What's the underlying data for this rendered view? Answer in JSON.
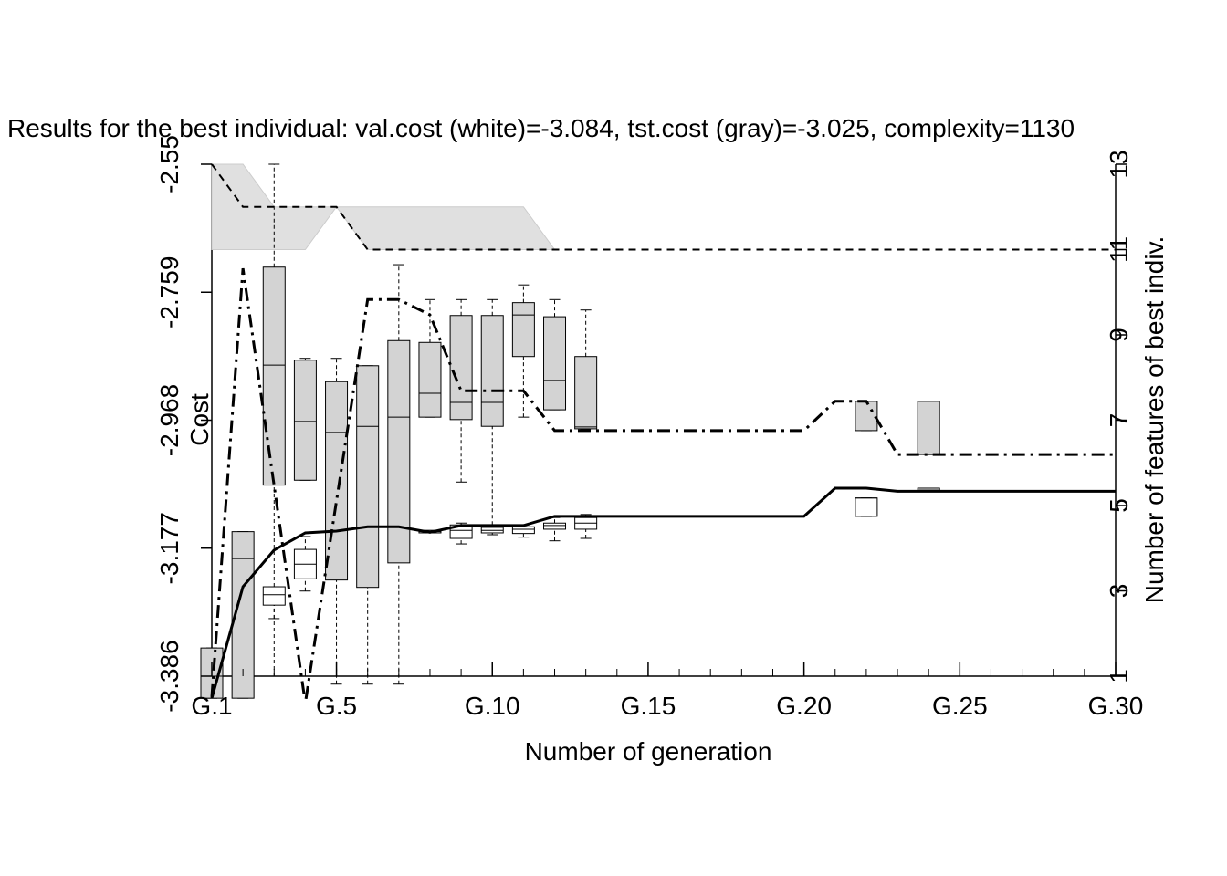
{
  "chart_data": {
    "type": "boxline",
    "title": "Results for the best individual:  val.cost (white)=-3.084, tst.cost (gray)=-3.025, complexity=1130",
    "xlabel": "Number of generation",
    "ylabel": "Cost",
    "y2label": "Number of features of best indiv.",
    "x": [
      1,
      2,
      3,
      4,
      5,
      6,
      7,
      8,
      9,
      10,
      11,
      12,
      13,
      14,
      15,
      16,
      17,
      18,
      19,
      20,
      21,
      22,
      23,
      24,
      25,
      26,
      27,
      28,
      29,
      30
    ],
    "xlim": [
      1,
      30
    ],
    "xticks": [
      {
        "value": 1,
        "label": "G.1"
      },
      {
        "value": 5,
        "label": "G.5"
      },
      {
        "value": 10,
        "label": "G.10"
      },
      {
        "value": 15,
        "label": "G.15"
      },
      {
        "value": 20,
        "label": "G.20"
      },
      {
        "value": 25,
        "label": "G.25"
      },
      {
        "value": 30,
        "label": "G.30"
      }
    ],
    "ylim": [
      -3.386,
      -2.55
    ],
    "yticks": [
      -3.386,
      -3.177,
      -2.968,
      -2.759,
      -2.55
    ],
    "y2lim": [
      1,
      13
    ],
    "y2ticks": [
      1,
      3,
      5,
      7,
      9,
      11,
      13
    ],
    "band": {
      "axis": "y2",
      "color": "#e0e0e0",
      "x": [
        1,
        2,
        3,
        4,
        5,
        6,
        7,
        8,
        9,
        10,
        11,
        12
      ],
      "upper": [
        13,
        13,
        12,
        12,
        12,
        12,
        12,
        12,
        12,
        12,
        12,
        11
      ],
      "lower": [
        11,
        11,
        11,
        11,
        12,
        11,
        11,
        11,
        11,
        11,
        11,
        11
      ]
    },
    "boxes": [
      {
        "color": "#d3d3d3",
        "x": [
          1,
          2,
          3,
          4,
          5,
          6,
          7,
          8,
          9,
          10,
          11,
          12,
          13,
          22,
          24
        ],
        "low": [
          -3.422,
          -3.422,
          -3.386,
          -3.066,
          -3.399,
          -3.399,
          -3.399,
          -2.963,
          -3.069,
          -3.139,
          -2.963,
          -2.951,
          -2.982,
          -2.985,
          -3.024
        ],
        "q1": [
          -3.422,
          -3.422,
          -3.074,
          -3.066,
          -3.229,
          -3.241,
          -3.201,
          -2.963,
          -2.967,
          -2.978,
          -2.864,
          -2.951,
          -2.982,
          -2.985,
          -3.024
        ],
        "median": [
          -3.386,
          -3.194,
          -2.878,
          -2.97,
          -2.988,
          -2.978,
          -2.963,
          -2.924,
          -2.939,
          -2.939,
          -2.796,
          -2.903,
          -2.979,
          -2.937,
          -2.937
        ],
        "q3": [
          -3.34,
          -3.15,
          -2.718,
          -2.87,
          -2.905,
          -2.879,
          -2.838,
          -2.841,
          -2.797,
          -2.797,
          -2.776,
          -2.799,
          -2.864,
          -2.937,
          -2.937
        ],
        "high": [
          -3.34,
          -3.15,
          -2.55,
          -2.867,
          -2.867,
          -2.879,
          -2.714,
          -2.771,
          -2.771,
          -2.771,
          -2.747,
          -2.771,
          -2.788,
          -2.937,
          -2.937
        ]
      },
      {
        "color": "#ffffff",
        "x": [
          3,
          4,
          8,
          9,
          10,
          11,
          12,
          13,
          22,
          24
        ],
        "low": [
          -3.292,
          -3.247,
          -3.152,
          -3.17,
          -3.155,
          -3.159,
          -3.165,
          -3.161,
          -3.125,
          -3.082
        ],
        "q1": [
          -3.27,
          -3.227,
          -3.152,
          -3.161,
          -3.152,
          -3.153,
          -3.146,
          -3.146,
          -3.125,
          -3.082
        ],
        "median": [
          -3.253,
          -3.203,
          -3.15,
          -3.148,
          -3.148,
          -3.146,
          -3.14,
          -3.136,
          -3.095,
          -3.079
        ],
        "q3": [
          -3.24,
          -3.179,
          -3.148,
          -3.139,
          -3.143,
          -3.142,
          -3.136,
          -3.127,
          -3.095,
          -3.079
        ],
        "high": [
          -3.24,
          -3.158,
          -3.148,
          -3.136,
          -3.139,
          -3.139,
          -3.127,
          -3.122,
          -3.095,
          -3.079
        ]
      }
    ],
    "series": [
      {
        "color": "#000000",
        "linestyle": "solid",
        "linewidth": 3,
        "values": [
          -3.422,
          -3.24,
          -3.18,
          -3.152,
          -3.149,
          -3.142,
          -3.142,
          -3.151,
          -3.14,
          -3.14,
          -3.14,
          -3.125,
          -3.125,
          -3.125,
          -3.125,
          -3.125,
          -3.125,
          -3.125,
          -3.125,
          -3.125,
          -3.079,
          -3.079,
          -3.084,
          -3.084,
          -3.084,
          -3.084,
          -3.084,
          -3.084,
          -3.084,
          -3.084
        ]
      },
      {
        "color": "#000000",
        "linestyle": "dashdot",
        "linewidth": 3,
        "values": [
          -3.42,
          -2.72,
          -3.075,
          -3.43,
          -3.1,
          -2.771,
          -2.771,
          -2.796,
          -2.92,
          -2.92,
          -2.92,
          -2.985,
          -2.985,
          -2.985,
          -2.985,
          -2.985,
          -2.985,
          -2.985,
          -2.985,
          -2.985,
          -2.937,
          -2.937,
          -3.024,
          -3.024,
          -3.024,
          -3.024,
          -3.024,
          -3.024,
          -3.024,
          -3.024
        ]
      },
      {
        "color": "#000000",
        "linestyle": "dashed",
        "linewidth": 2,
        "axis": "y2",
        "values": [
          13,
          12,
          12,
          12,
          12,
          11,
          11,
          11,
          11,
          11,
          11,
          11,
          11,
          11,
          11,
          11,
          11,
          11,
          11,
          11,
          11,
          11,
          11,
          11,
          11,
          11,
          11,
          11,
          11,
          11
        ]
      }
    ]
  }
}
